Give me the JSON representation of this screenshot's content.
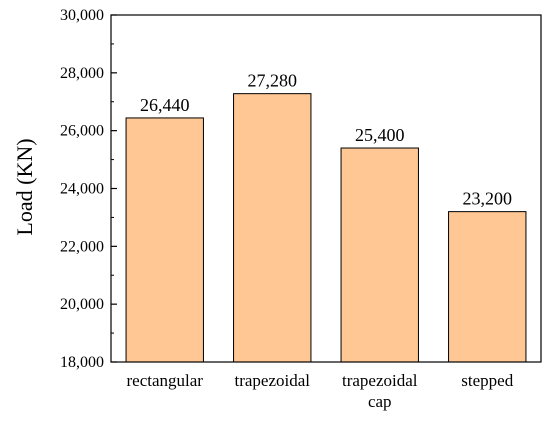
{
  "chart_data": {
    "type": "bar",
    "categories": [
      [
        "rectangular"
      ],
      [
        "trapezoidal"
      ],
      [
        "trapezoidal",
        "cap"
      ],
      [
        "stepped"
      ]
    ],
    "values": [
      26440,
      27280,
      25400,
      23200
    ],
    "data_labels": [
      "26,440",
      "27,280",
      "25,400",
      "23,200"
    ],
    "title": "",
    "xlabel": "",
    "ylabel": "Load (KN)",
    "ylim": [
      18000,
      30000
    ],
    "yticks": [
      18000,
      20000,
      22000,
      24000,
      26000,
      28000,
      30000
    ],
    "ytick_labels": [
      "18,000",
      "20,000",
      "22,000",
      "24,000",
      "26,000",
      "28,000",
      "30,000"
    ],
    "grid": false,
    "legend": "none",
    "bar_color": "#FEC794",
    "edge_color": "#000000"
  }
}
